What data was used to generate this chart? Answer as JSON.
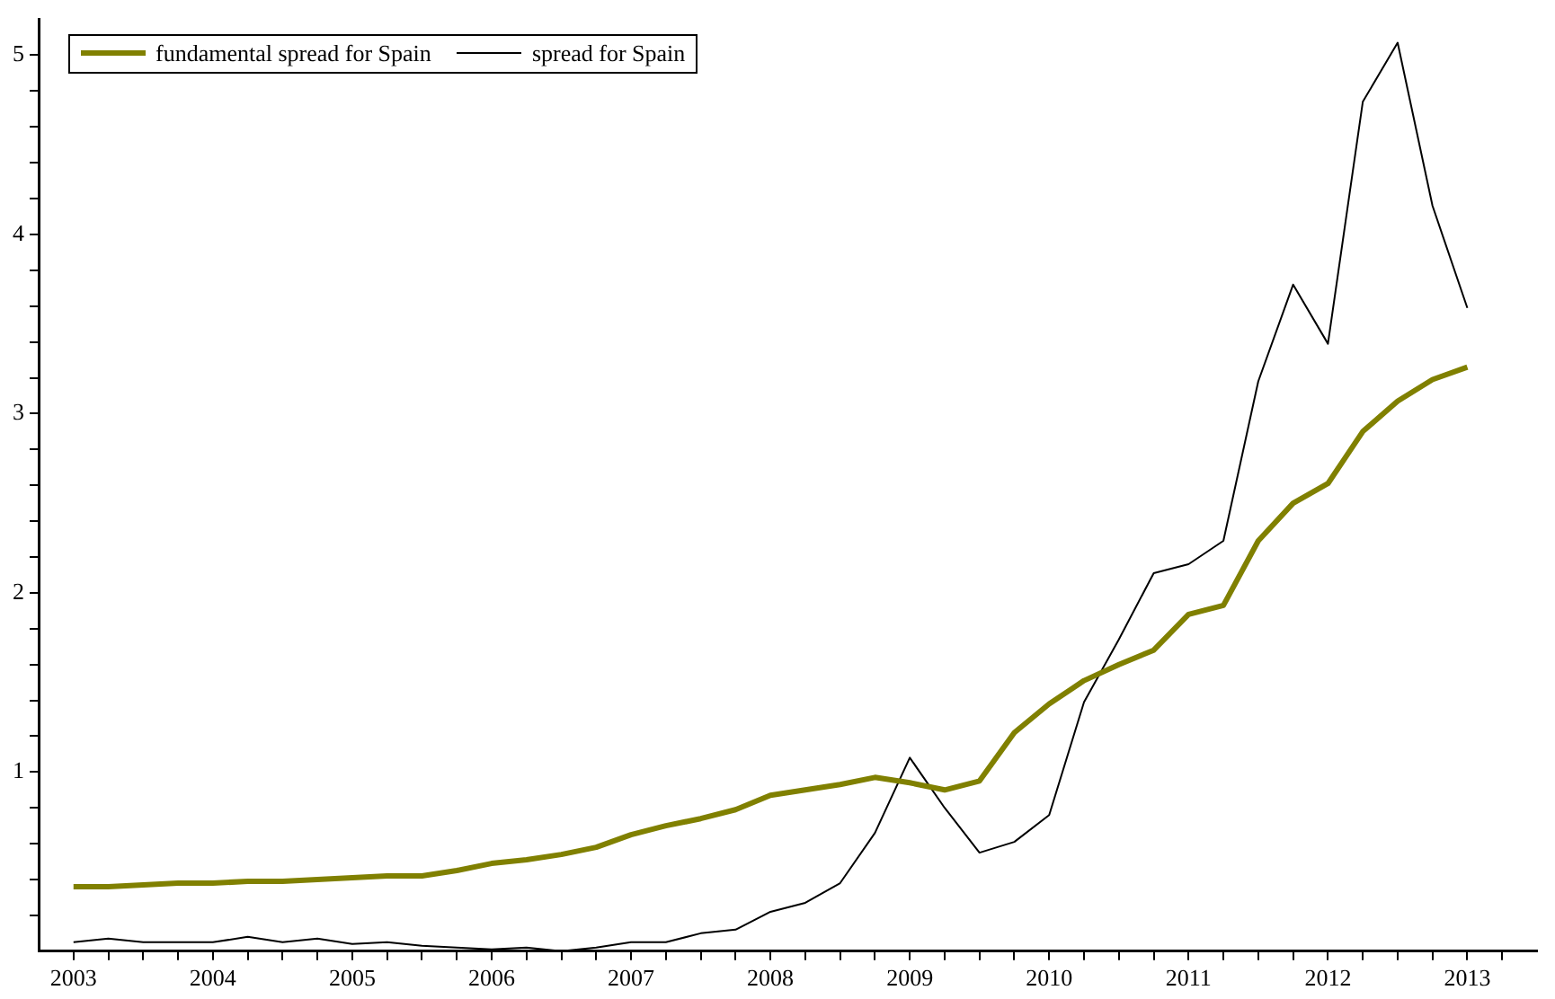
{
  "chart_data": {
    "type": "line",
    "legend": "top left",
    "grid": false,
    "marker": "none",
    "x": [
      2003,
      2003.25,
      2003.5,
      2003.75,
      2004,
      2004.25,
      2004.5,
      2004.75,
      2005,
      2005.25,
      2005.5,
      2005.75,
      2006,
      2006.25,
      2006.5,
      2006.75,
      2007,
      2007.25,
      2007.5,
      2007.75,
      2008,
      2008.25,
      2008.5,
      2008.75,
      2009,
      2009.25,
      2009.5,
      2009.75,
      2010,
      2010.25,
      2010.5,
      2010.75,
      2011,
      2011.25,
      2011.5,
      2011.75,
      2012,
      2012.25,
      2012.5,
      2012.75,
      2013
    ],
    "xlim": [
      2002.75,
      2013.5
    ],
    "xticks": [
      2003,
      {
        "value": 2003.25,
        "label": null
      },
      {
        "value": 2003.5,
        "label": null
      },
      {
        "value": 2003.75,
        "label": null
      },
      2004,
      {
        "value": 2004.25,
        "label": null
      },
      {
        "value": 2004.5,
        "label": null
      },
      {
        "value": 2004.75,
        "label": null
      },
      2005,
      {
        "value": 2005.25,
        "label": null
      },
      {
        "value": 2005.5,
        "label": null
      },
      {
        "value": 2005.75,
        "label": null
      },
      2006,
      {
        "value": 2006.25,
        "label": null
      },
      {
        "value": 2006.5,
        "label": null
      },
      {
        "value": 2006.75,
        "label": null
      },
      2007,
      {
        "value": 2007.25,
        "label": null
      },
      {
        "value": 2007.5,
        "label": null
      },
      {
        "value": 2007.75,
        "label": null
      },
      2008,
      {
        "value": 2008.25,
        "label": null
      },
      {
        "value": 2008.5,
        "label": null
      },
      {
        "value": 2008.75,
        "label": null
      },
      2009,
      {
        "value": 2009.25,
        "label": null
      },
      {
        "value": 2009.5,
        "label": null
      },
      {
        "value": 2009.75,
        "label": null
      },
      2010,
      {
        "value": 2010.25,
        "label": null
      },
      {
        "value": 2010.5,
        "label": null
      },
      {
        "value": 2010.75,
        "label": null
      },
      2011,
      {
        "value": 2011.25,
        "label": null
      },
      {
        "value": 2011.5,
        "label": null
      },
      {
        "value": 2011.75,
        "label": null
      },
      2012,
      {
        "value": 2012.25,
        "label": null
      },
      {
        "value": 2012.5,
        "label": null
      },
      {
        "value": 2012.75,
        "label": null
      },
      2013,
      {
        "value": 2013.25,
        "label": null
      }
    ],
    "ylim": [
      0,
      5.2
    ],
    "yticks": [
      {
        "value": 0.2,
        "label": null
      },
      {
        "value": 0.4,
        "label": null
      },
      {
        "value": 0.6,
        "label": null
      },
      {
        "value": 0.8,
        "label": null
      },
      1,
      {
        "value": 1.2,
        "label": null
      },
      {
        "value": 1.4,
        "label": null
      },
      {
        "value": 1.6,
        "label": null
      },
      {
        "value": 1.8,
        "label": null
      },
      2,
      {
        "value": 2.2,
        "label": null
      },
      {
        "value": 2.4,
        "label": null
      },
      {
        "value": 2.6,
        "label": null
      },
      {
        "value": 2.8,
        "label": null
      },
      3,
      {
        "value": 3.2,
        "label": null
      },
      {
        "value": 3.4,
        "label": null
      },
      {
        "value": 3.6,
        "label": null
      },
      {
        "value": 3.8,
        "label": null
      },
      4,
      {
        "value": 4.2,
        "label": null
      },
      {
        "value": 4.4,
        "label": null
      },
      {
        "value": 4.6,
        "label": null
      },
      {
        "value": 4.8,
        "label": null
      },
      5
    ],
    "series": [
      {
        "name": "fundamental spread for Spain",
        "color": "#808000",
        "values": [
          0.36,
          0.36,
          0.37,
          0.38,
          0.38,
          0.39,
          0.39,
          0.4,
          0.41,
          0.42,
          0.42,
          0.45,
          0.49,
          0.51,
          0.54,
          0.58,
          0.65,
          0.7,
          0.74,
          0.79,
          0.87,
          0.9,
          0.93,
          0.97,
          0.94,
          0.9,
          0.95,
          1.22,
          1.38,
          1.51,
          1.6,
          1.68,
          1.88,
          1.93,
          2.29,
          2.5,
          2.61,
          2.9,
          3.07,
          3.19,
          3.26
        ]
      },
      {
        "name": "spread for Spain",
        "color": "#000000",
        "values": [
          0.05,
          0.07,
          0.05,
          0.05,
          0.05,
          0.08,
          0.05,
          0.07,
          0.04,
          0.05,
          0.03,
          0.02,
          0.01,
          0.02,
          0.0,
          0.02,
          0.05,
          0.05,
          0.1,
          0.12,
          0.22,
          0.27,
          0.38,
          0.66,
          1.08,
          0.8,
          0.55,
          0.61,
          0.76,
          1.39,
          1.74,
          2.11,
          2.16,
          2.29,
          3.18,
          3.72,
          3.39,
          4.74,
          5.07,
          4.16,
          3.59
        ]
      }
    ]
  }
}
